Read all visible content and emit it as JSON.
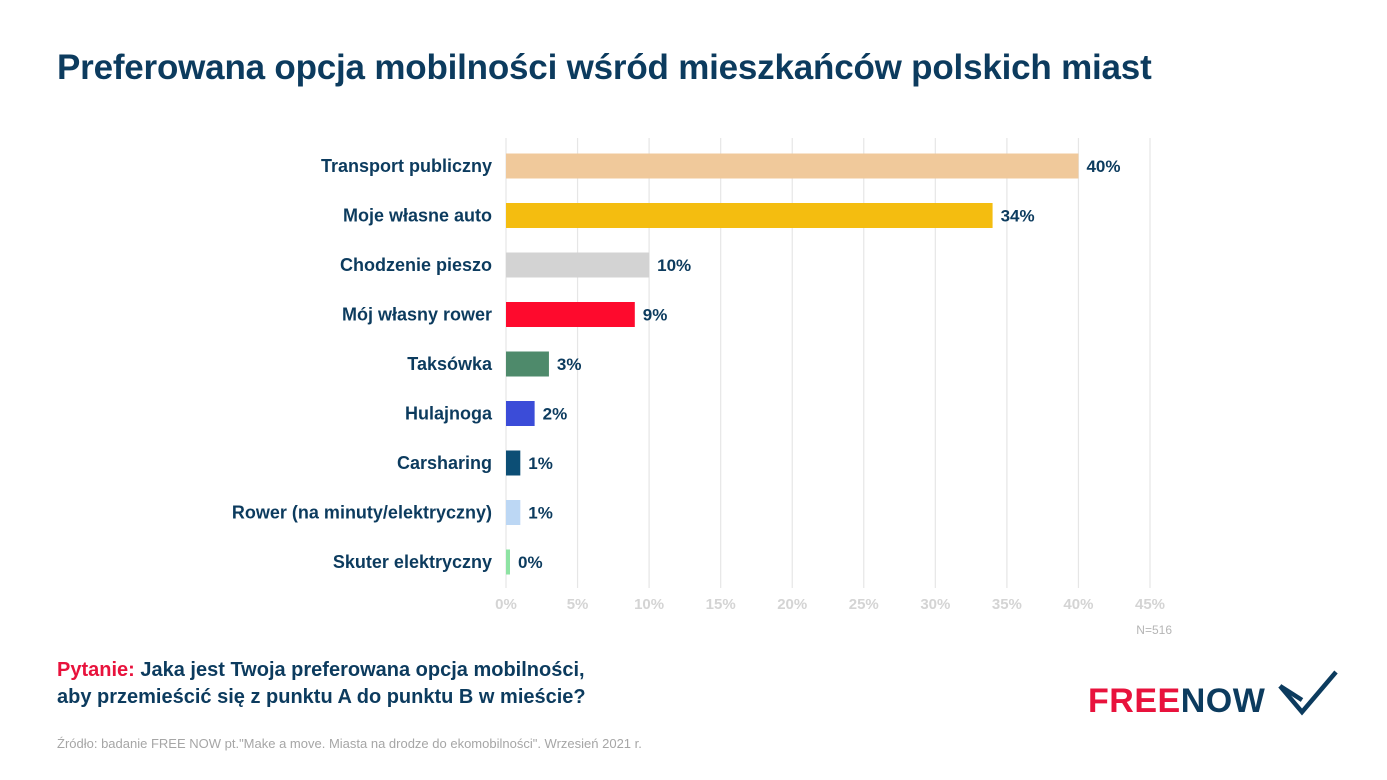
{
  "title": "Preferowana opcja mobilności wśród mieszkańców polskich miast",
  "chart_data": {
    "type": "bar",
    "orientation": "horizontal",
    "categories": [
      "Transport publiczny",
      "Moje własne auto",
      "Chodzenie pieszo",
      "Mój własny rower",
      "Taksówka",
      "Hulajnoga",
      "Carsharing",
      "Rower (na minuty/elektryczny)",
      "Skuter elektryczny"
    ],
    "values": [
      40,
      34,
      10,
      9,
      3,
      2,
      1,
      1,
      0
    ],
    "value_labels": [
      "40%",
      "34%",
      "10%",
      "9%",
      "3%",
      "2%",
      "1%",
      "1%",
      "0%"
    ],
    "colors": [
      "#f0c99b",
      "#f4bd10",
      "#d3d3d3",
      "#fe0a2d",
      "#4e8a6b",
      "#3b4cd8",
      "#0c4e75",
      "#bcd7f4",
      "#8ee3a3"
    ],
    "xlim": [
      0,
      45
    ],
    "xticks": [
      0,
      5,
      10,
      15,
      20,
      25,
      30,
      35,
      40,
      45
    ],
    "xtick_labels": [
      "0%",
      "5%",
      "10%",
      "15%",
      "20%",
      "25%",
      "30%",
      "35%",
      "40%",
      "45%"
    ],
    "grid": true,
    "legend": "none"
  },
  "sample_note": "N=516",
  "question": {
    "prefix": "Pytanie:",
    "line1": "Jaka jest Twoja preferowana opcja mobilności,",
    "line2": "aby przemieścić się z punktu A do punktu B w mieście?"
  },
  "source": "Źródło: badanie FREE NOW pt.\"Make a move. Miasta na drodze do ekomobilności\". Wrzesień 2021 r.",
  "logo": {
    "free": "FREE",
    "now": "NOW",
    "colors": {
      "free": "#e8123c",
      "now": "#0c3b5e"
    }
  }
}
